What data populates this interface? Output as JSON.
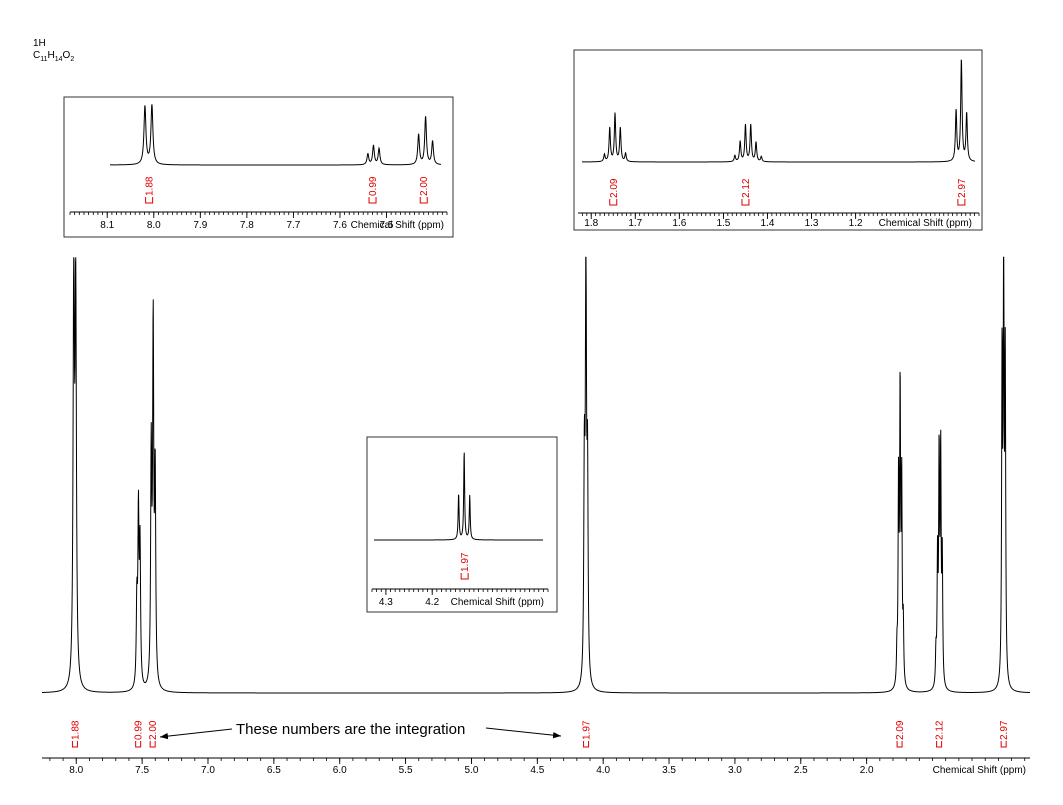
{
  "header": {
    "nucleus": "1H",
    "formula_parts": [
      {
        "text": "C",
        "sub": false
      },
      {
        "text": "11",
        "sub": true
      },
      {
        "text": "H",
        "sub": false
      },
      {
        "text": "14",
        "sub": true
      },
      {
        "text": "O",
        "sub": false
      },
      {
        "text": "2",
        "sub": true
      }
    ]
  },
  "annotation": {
    "text": "These numbers are the integration"
  },
  "colors": {
    "integral": "#e00000",
    "trace": "#000000"
  },
  "chart_data": [
    {
      "id": "main",
      "type": "line",
      "title": "",
      "xlabel": "Chemical Shift (ppm)",
      "xlim": [
        8.26,
        0.76
      ],
      "reversed_axis": true,
      "ticks": [
        8.0,
        7.5,
        7.0,
        6.5,
        6.0,
        5.5,
        5.0,
        4.5,
        4.0,
        3.5,
        3.0,
        2.5,
        2.0
      ],
      "tick_labels": [
        "8.0",
        "7.5",
        "7.0",
        "6.5",
        "6.0",
        "5.5",
        "5.0",
        "4.5",
        "4.0",
        "3.5",
        "3.0",
        "2.5",
        "2.0"
      ],
      "minor_step": 0.1,
      "peaks": [
        {
          "shift": 8.019,
          "height": 0.97,
          "width": 0.006
        },
        {
          "shift": 8.004,
          "height": 0.94,
          "width": 0.006
        },
        {
          "shift": 7.54,
          "height": 0.2,
          "width": 0.005
        },
        {
          "shift": 7.528,
          "height": 0.41,
          "width": 0.005
        },
        {
          "shift": 7.516,
          "height": 0.33,
          "width": 0.005
        },
        {
          "shift": 7.431,
          "height": 0.55,
          "width": 0.005
        },
        {
          "shift": 7.416,
          "height": 0.85,
          "width": 0.005
        },
        {
          "shift": 7.401,
          "height": 0.5,
          "width": 0.005
        },
        {
          "shift": 4.143,
          "height": 0.5,
          "width": 0.005
        },
        {
          "shift": 4.131,
          "height": 1.0,
          "width": 0.005
        },
        {
          "shift": 4.119,
          "height": 0.49,
          "width": 0.005
        },
        {
          "shift": 1.77,
          "height": 0.08,
          "width": 0.004
        },
        {
          "shift": 1.758,
          "height": 0.48,
          "width": 0.004
        },
        {
          "shift": 1.746,
          "height": 0.7,
          "width": 0.004
        },
        {
          "shift": 1.734,
          "height": 0.48,
          "width": 0.004
        },
        {
          "shift": 1.722,
          "height": 0.14,
          "width": 0.004
        },
        {
          "shift": 1.474,
          "height": 0.08,
          "width": 0.004
        },
        {
          "shift": 1.462,
          "height": 0.3,
          "width": 0.004
        },
        {
          "shift": 1.45,
          "height": 0.55,
          "width": 0.004
        },
        {
          "shift": 1.438,
          "height": 0.55,
          "width": 0.004
        },
        {
          "shift": 1.426,
          "height": 0.3,
          "width": 0.004
        },
        {
          "shift": 0.972,
          "height": 0.78,
          "width": 0.004
        },
        {
          "shift": 0.96,
          "height": 1.03,
          "width": 0.004
        },
        {
          "shift": 0.948,
          "height": 0.76,
          "width": 0.004
        }
      ],
      "integrals": [
        {
          "shift": 8.01,
          "label": "1.88"
        },
        {
          "shift": 7.53,
          "label": "0.99"
        },
        {
          "shift": 7.42,
          "label": "2.00"
        },
        {
          "shift": 4.13,
          "label": "1.97"
        },
        {
          "shift": 1.75,
          "label": "2.09"
        },
        {
          "shift": 1.45,
          "label": "2.12"
        },
        {
          "shift": 0.96,
          "label": "2.97"
        }
      ]
    },
    {
      "id": "inset_aromatic",
      "type": "line",
      "title": "",
      "xlabel": "Chemical Shift (ppm)",
      "xlim": [
        8.18,
        7.37
      ],
      "reversed_axis": true,
      "ticks": [
        8.1,
        8.0,
        7.9,
        7.8,
        7.7,
        7.6,
        7.5
      ],
      "tick_labels": [
        "8.1",
        "8.0",
        "7.9",
        "7.8",
        "7.7",
        "7.6",
        "7.5"
      ],
      "minor_step": 0.01,
      "peaks": [
        {
          "shift": 8.019,
          "height": 0.97,
          "width": 0.0025
        },
        {
          "shift": 8.004,
          "height": 0.99,
          "width": 0.0025
        },
        {
          "shift": 7.54,
          "height": 0.18,
          "width": 0.0022
        },
        {
          "shift": 7.528,
          "height": 0.32,
          "width": 0.0022
        },
        {
          "shift": 7.516,
          "height": 0.27,
          "width": 0.0022
        },
        {
          "shift": 7.431,
          "height": 0.5,
          "width": 0.0022
        },
        {
          "shift": 7.416,
          "height": 0.8,
          "width": 0.0022
        },
        {
          "shift": 7.401,
          "height": 0.39,
          "width": 0.0022
        }
      ],
      "integrals": [
        {
          "shift": 8.01,
          "label": "1.88"
        },
        {
          "shift": 7.53,
          "label": "0.99"
        },
        {
          "shift": 7.42,
          "label": "2.00"
        }
      ]
    },
    {
      "id": "inset_aliphatic",
      "type": "line",
      "title": "",
      "xlabel": "Chemical Shift (ppm)",
      "xlim": [
        1.83,
        0.92
      ],
      "reversed_axis": true,
      "ticks": [
        1.8,
        1.7,
        1.6,
        1.5,
        1.4,
        1.3,
        1.2
      ],
      "tick_labels": [
        "1.8",
        "1.7",
        "1.6",
        "1.5",
        "1.4",
        "1.3",
        "1.2"
      ],
      "minor_step": 0.01,
      "peaks": [
        {
          "shift": 1.77,
          "height": 0.07,
          "width": 0.0018
        },
        {
          "shift": 1.758,
          "height": 0.33,
          "width": 0.0018
        },
        {
          "shift": 1.746,
          "height": 0.47,
          "width": 0.0018
        },
        {
          "shift": 1.734,
          "height": 0.33,
          "width": 0.0018
        },
        {
          "shift": 1.722,
          "height": 0.08,
          "width": 0.0018
        },
        {
          "shift": 1.474,
          "height": 0.06,
          "width": 0.0018
        },
        {
          "shift": 1.462,
          "height": 0.2,
          "width": 0.0018
        },
        {
          "shift": 1.45,
          "height": 0.36,
          "width": 0.0018
        },
        {
          "shift": 1.438,
          "height": 0.36,
          "width": 0.0018
        },
        {
          "shift": 1.426,
          "height": 0.19,
          "width": 0.0018
        },
        {
          "shift": 1.414,
          "height": 0.05,
          "width": 0.0018
        },
        {
          "shift": 0.972,
          "height": 0.5,
          "width": 0.0018
        },
        {
          "shift": 0.96,
          "height": 1.0,
          "width": 0.0018
        },
        {
          "shift": 0.948,
          "height": 0.47,
          "width": 0.0018
        }
      ],
      "integrals": [
        {
          "shift": 1.75,
          "label": "2.09"
        },
        {
          "shift": 1.45,
          "label": "2.12"
        },
        {
          "shift": 0.96,
          "label": "2.97"
        }
      ]
    },
    {
      "id": "inset_ch2o",
      "type": "line",
      "title": "",
      "xlabel": "Chemical Shift (ppm)",
      "xlim": [
        4.33,
        3.95
      ],
      "reversed_axis": true,
      "ticks": [
        4.3,
        4.2
      ],
      "tick_labels": [
        "4.3",
        "4.2"
      ],
      "minor_step": 0.01,
      "peaks": [
        {
          "shift": 4.143,
          "height": 0.49,
          "width": 0.0012
        },
        {
          "shift": 4.131,
          "height": 0.94,
          "width": 0.0012
        },
        {
          "shift": 4.119,
          "height": 0.47,
          "width": 0.0012
        }
      ],
      "integrals": [
        {
          "shift": 4.13,
          "label": "1.97"
        }
      ]
    }
  ]
}
